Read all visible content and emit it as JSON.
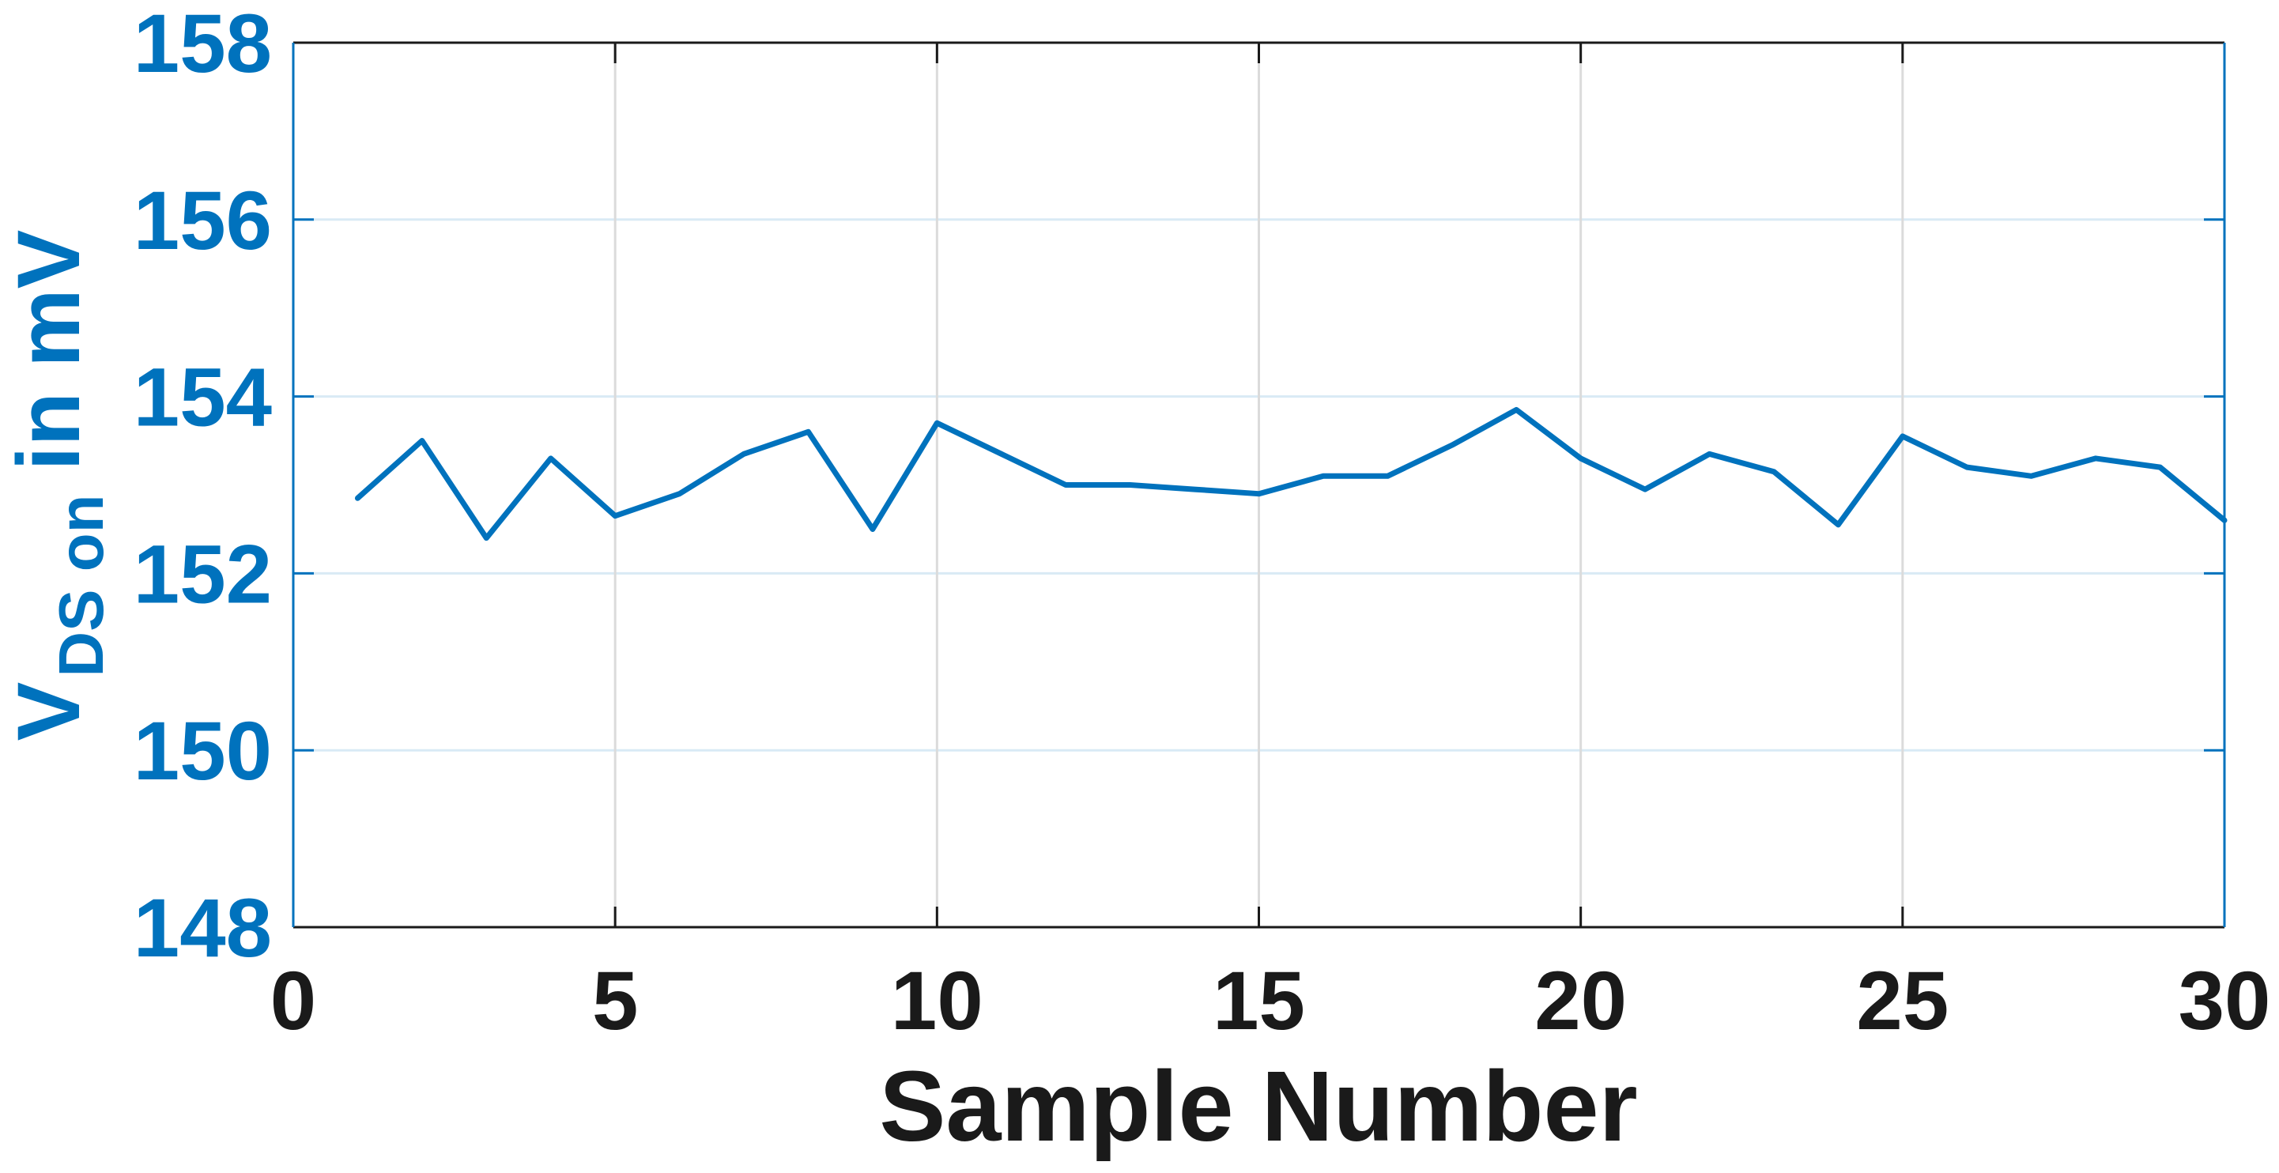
{
  "figure": {
    "xlabel": "Sample Number",
    "ylabel": {
      "main": "V",
      "sub": "DS on",
      "rest": "in mV"
    },
    "colors": {
      "axis_blue": "#0072BD",
      "axis_black": "#1a1a1a",
      "hgrid": "#d9eaf5",
      "vgrid": "#dbdbdb",
      "background": "#ffffff"
    }
  },
  "chart_data": {
    "type": "line",
    "title": "",
    "xlabel": "Sample Number",
    "ylabel": "V_{DS on} in mV",
    "x": [
      1,
      2,
      3,
      4,
      5,
      6,
      7,
      8,
      9,
      10,
      11,
      12,
      13,
      14,
      15,
      16,
      17,
      18,
      19,
      20,
      21,
      22,
      23,
      24,
      25,
      26,
      27,
      28,
      29,
      30
    ],
    "values": [
      152.85,
      153.5,
      152.4,
      153.3,
      152.65,
      152.9,
      153.35,
      153.6,
      152.5,
      153.7,
      153.35,
      153.0,
      153.0,
      152.95,
      152.9,
      153.1,
      153.1,
      153.45,
      153.85,
      153.3,
      152.95,
      153.35,
      153.15,
      152.55,
      153.55,
      153.2,
      153.1,
      153.3,
      153.2,
      152.6
    ],
    "xlim": [
      0,
      30
    ],
    "ylim": [
      148,
      158
    ],
    "x_ticks": [
      0,
      5,
      10,
      15,
      20,
      25,
      30
    ],
    "y_ticks": [
      148,
      150,
      152,
      154,
      156,
      158
    ],
    "grid": true,
    "legend": null,
    "line_color": "#0072BD"
  }
}
